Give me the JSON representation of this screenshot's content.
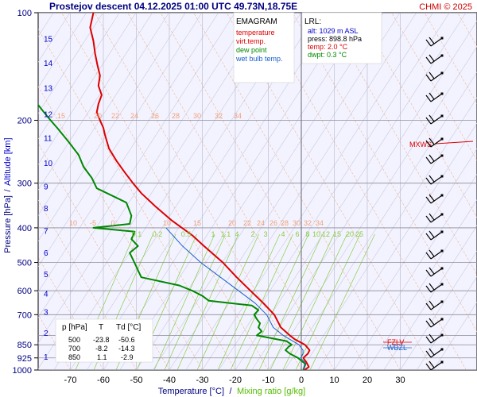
{
  "header": {
    "title": "Prostejov   descent   04.12.2025 01:00 UTC  49.73N,18.75E",
    "copyright": "CHMI © 2025"
  },
  "chart_data": {
    "type": "line",
    "subtype": "emagram",
    "title": "Prostejov   descent   04.12.2025 01:00 UTC  49.73N,18.75E",
    "xlabel_main": "Temperature [°C]",
    "xlabel_sep": "/",
    "xlabel_mix": "Mixing ratio [g/kg]",
    "ylabel_pressure": "Pressure [hPa]",
    "ylabel_sep": "/",
    "ylabel_altitude": "Altitude [km]",
    "xlim": [
      -80,
      30
    ],
    "ylim": [
      1000,
      100
    ],
    "yscale": "log",
    "grid": true,
    "x_ticks": [
      -70,
      -60,
      -50,
      -40,
      -30,
      -20,
      -10,
      0,
      10,
      20,
      30
    ],
    "x_tick_labels": [
      "-70",
      "-60",
      "-50",
      "-40",
      "-30",
      "-20",
      "-10",
      "0",
      "10",
      "20",
      "30"
    ],
    "pressure_ticks": [
      100,
      200,
      300,
      400,
      500,
      600,
      700,
      850,
      925,
      1000
    ],
    "pressure_tick_labels": [
      "100",
      "200",
      "300",
      "400",
      "500",
      "600",
      "700",
      "850",
      "925",
      "1000"
    ],
    "pressure_ticks_minor": [
      800
    ],
    "altitude_ticks": [
      {
        "p": 917,
        "label": "1"
      },
      {
        "p": 786,
        "label": "2"
      },
      {
        "p": 687,
        "label": "3"
      },
      {
        "p": 610,
        "label": "4"
      },
      {
        "p": 538,
        "label": "5"
      },
      {
        "p": 469,
        "label": "6"
      },
      {
        "p": 407,
        "label": "7"
      },
      {
        "p": 352,
        "label": "8"
      },
      {
        "p": 306,
        "label": "9"
      },
      {
        "p": 263,
        "label": "10"
      },
      {
        "p": 224,
        "label": "11"
      },
      {
        "p": 192,
        "label": "12"
      },
      {
        "p": 162,
        "label": "13"
      },
      {
        "p": 138,
        "label": "14"
      },
      {
        "p": 118,
        "label": "15"
      }
    ],
    "legend": {
      "title": "EMAGRAM",
      "position": "top-center",
      "items": [
        {
          "label": "temperature",
          "color": "#dd0000"
        },
        {
          "label": "virt.temp.",
          "color": "#dd0000"
        },
        {
          "label": "dew point",
          "color": "#008800"
        },
        {
          "label": "wet bulb temp.",
          "color": "#1a5fcc"
        }
      ]
    },
    "lrl_box": {
      "title": "LRL:",
      "position": "top-right",
      "items": [
        {
          "text": "alt: 1029 m ASL",
          "color": "#0000cc"
        },
        {
          "text": "press: 898.8 hPa",
          "color": "#000000"
        },
        {
          "text": "temp: 2.0 °C",
          "color": "#dd0000"
        },
        {
          "text": "dwpt: 0.3 °C",
          "color": "#008800"
        }
      ]
    },
    "table": {
      "position": "bottom-left",
      "headers": [
        "p [hPa]",
        "T",
        "Td [°C]"
      ],
      "rows": [
        [
          "500",
          "-23.8",
          "-50.6"
        ],
        [
          "700",
          "-8.2",
          "-14.3"
        ],
        [
          "850",
          "1.1",
          "-2.9"
        ]
      ]
    },
    "level_labels": [
      {
        "label": "MXWS",
        "p": 232,
        "color": "#dd0000"
      },
      {
        "label": "FZLV",
        "p": 842,
        "color": "#dd0000"
      },
      {
        "label": "WBZL",
        "p": 867,
        "color": "#1a5fcc"
      }
    ],
    "mixing_ratio_labels": [
      "0.1",
      "0.2",
      "0.5",
      "1",
      "1.1",
      "4",
      "2",
      "3",
      "4",
      "6",
      "8",
      "10",
      "12",
      "15",
      "20",
      "25"
    ],
    "dry_adiabat_labels_200": [
      "15",
      "20",
      "22",
      "24",
      "26",
      "28",
      "30",
      "32",
      "34"
    ],
    "dry_adiabat_labels_400": [
      "10",
      "-5",
      "0",
      "10",
      "15",
      "20",
      "22",
      "24",
      "26",
      "28",
      "30",
      "32",
      "34"
    ],
    "series": [
      {
        "name": "temperature",
        "color": "#dd0000",
        "points": [
          [
            1000,
            1.0
          ],
          [
            980,
            2.3
          ],
          [
            950,
            1.5
          ],
          [
            925,
            0.6
          ],
          [
            900,
            2.0
          ],
          [
            880,
            2.5
          ],
          [
            860,
            1.6
          ],
          [
            850,
            1.1
          ],
          [
            820,
            -2.0
          ],
          [
            800,
            -3.5
          ],
          [
            760,
            -6.2
          ],
          [
            700,
            -8.2
          ],
          [
            650,
            -11.5
          ],
          [
            600,
            -15.4
          ],
          [
            550,
            -19.6
          ],
          [
            500,
            -23.8
          ],
          [
            450,
            -29.5
          ],
          [
            420,
            -33.0
          ],
          [
            400,
            -36.2
          ],
          [
            380,
            -39.5
          ],
          [
            350,
            -44.0
          ],
          [
            320,
            -48.5
          ],
          [
            300,
            -51.0
          ],
          [
            280,
            -53.5
          ],
          [
            260,
            -56.0
          ],
          [
            240,
            -58.3
          ],
          [
            220,
            -59.5
          ],
          [
            210,
            -60.0
          ],
          [
            200,
            -61.0
          ],
          [
            190,
            -62.0
          ],
          [
            180,
            -61.5
          ],
          [
            170,
            -60.5
          ],
          [
            160,
            -61.5
          ],
          [
            150,
            -61.0
          ],
          [
            140,
            -61.8
          ],
          [
            130,
            -62.5
          ],
          [
            120,
            -63.0
          ],
          [
            110,
            -64.0
          ],
          [
            100,
            -63.0
          ]
        ]
      },
      {
        "name": "dew point",
        "color": "#008800",
        "points": [
          [
            1000,
            0.6
          ],
          [
            960,
            1.3
          ],
          [
            950,
            0.5
          ],
          [
            925,
            -1.0
          ],
          [
            900,
            -3.5
          ],
          [
            880,
            -4.8
          ],
          [
            860,
            -3.8
          ],
          [
            850,
            -2.9
          ],
          [
            830,
            -4.5
          ],
          [
            800,
            -13.5
          ],
          [
            780,
            -12.0
          ],
          [
            760,
            -13.0
          ],
          [
            740,
            -12.5
          ],
          [
            720,
            -13.5
          ],
          [
            700,
            -14.3
          ],
          [
            680,
            -13.0
          ],
          [
            660,
            -15.0
          ],
          [
            640,
            -28.0
          ],
          [
            620,
            -30.0
          ],
          [
            600,
            -33.0
          ],
          [
            580,
            -37.0
          ],
          [
            550,
            -48.5
          ],
          [
            500,
            -50.6
          ],
          [
            470,
            -52.0
          ],
          [
            450,
            -49.5
          ],
          [
            430,
            -51.5
          ],
          [
            410,
            -50.5
          ],
          [
            400,
            -63.0
          ],
          [
            390,
            -52.0
          ],
          [
            370,
            -51.5
          ],
          [
            340,
            -53.0
          ],
          [
            310,
            -62.0
          ],
          [
            290,
            -63.5
          ],
          [
            270,
            -66.0
          ],
          [
            250,
            -67.5
          ],
          [
            230,
            -70.5
          ],
          [
            210,
            -74.0
          ],
          [
            200,
            -76.0
          ],
          [
            190,
            -78.0
          ],
          [
            180,
            -80.0
          ]
        ]
      },
      {
        "name": "wet bulb temp.",
        "color": "#1a5fcc",
        "points": [
          [
            1000,
            0.8
          ],
          [
            950,
            1.0
          ],
          [
            925,
            -0.2
          ],
          [
            900,
            0.5
          ],
          [
            880,
            0.5
          ],
          [
            850,
            -0.7
          ],
          [
            800,
            -5.5
          ],
          [
            760,
            -8.5
          ],
          [
            700,
            -10.5
          ],
          [
            650,
            -14.0
          ],
          [
            600,
            -19.0
          ],
          [
            550,
            -24.5
          ],
          [
            500,
            -30.5
          ],
          [
            450,
            -36.0
          ],
          [
            400,
            -41.0
          ]
        ]
      }
    ]
  }
}
